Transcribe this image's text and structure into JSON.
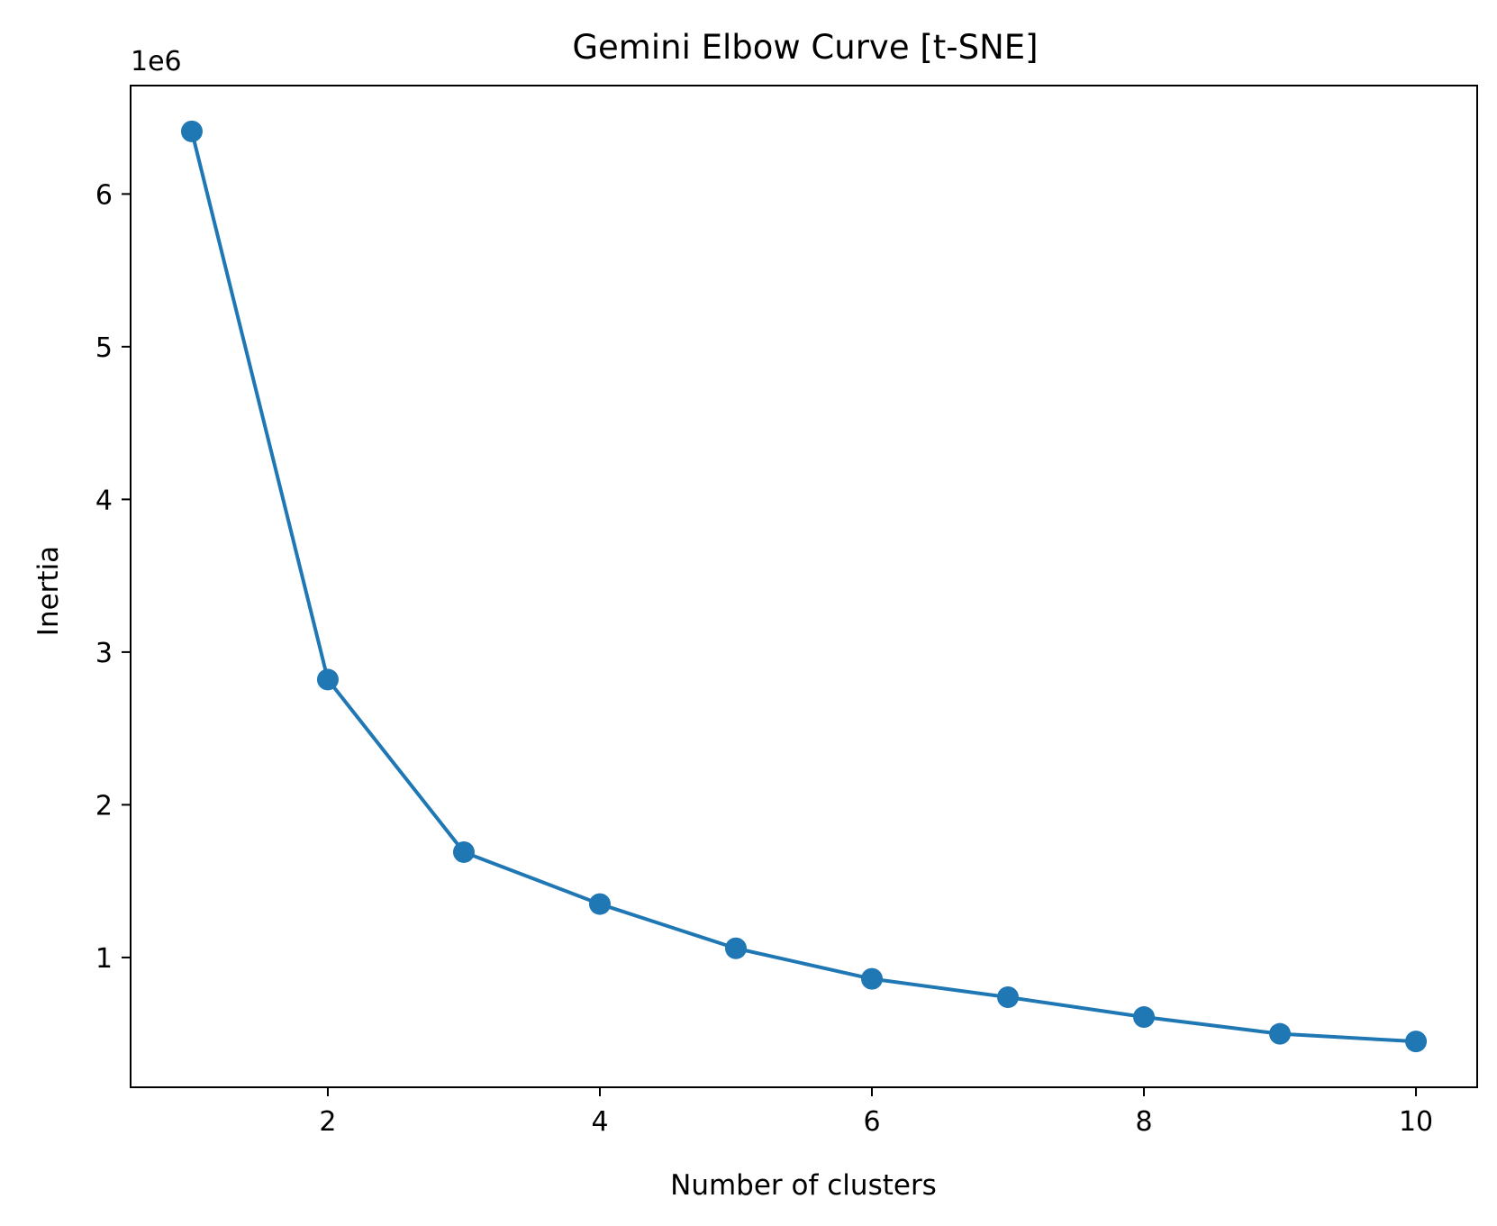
{
  "chart_data": {
    "type": "line",
    "title": "Gemini Elbow Curve [t-SNE]",
    "xlabel": "Number of clusters",
    "ylabel": "Inertia",
    "y_offset_label": "1e6",
    "x": [
      1,
      2,
      3,
      4,
      5,
      6,
      7,
      8,
      9,
      10
    ],
    "values": [
      6.41,
      2.82,
      1.69,
      1.35,
      1.06,
      0.86,
      0.74,
      0.61,
      0.5,
      0.45
    ],
    "xlim": [
      0.55,
      10.45
    ],
    "ylim": [
      0.15,
      6.71
    ],
    "x_ticks": [
      2,
      4,
      6,
      8,
      10
    ],
    "x_tick_labels": [
      "2",
      "4",
      "6",
      "8",
      "10"
    ],
    "y_ticks": [
      1,
      2,
      3,
      4,
      5,
      6
    ],
    "y_tick_labels": [
      "1",
      "2",
      "3",
      "4",
      "5",
      "6"
    ],
    "grid": false,
    "marker": "circle",
    "color": "#1f77b4"
  }
}
